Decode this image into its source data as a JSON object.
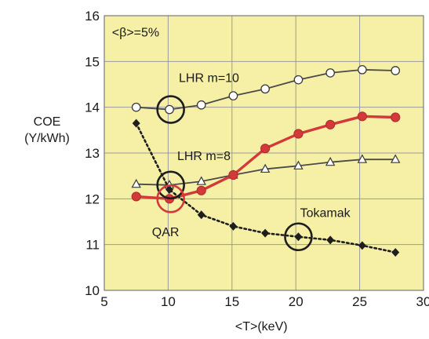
{
  "chart_data": {
    "type": "line",
    "annotation_top": "<β>=5%",
    "xlabel": "<T>(keV)",
    "ylabel_line1": "COE",
    "ylabel_line2": "(Y/kWh)",
    "xlim": [
      5,
      30
    ],
    "ylim": [
      10,
      16
    ],
    "xticks": [
      5,
      10,
      15,
      20,
      25,
      30
    ],
    "xtick_labels": [
      "5",
      "10",
      "15",
      "20",
      "25",
      "30"
    ],
    "yticks": [
      10,
      11,
      12,
      13,
      14,
      15,
      16
    ],
    "ytick_labels": [
      "10",
      "11",
      "12",
      "13",
      "14",
      "15",
      "16"
    ],
    "grid": true,
    "background": "#f6f0a6",
    "series": [
      {
        "name": "LHR m=10",
        "color": "#4a4a4a",
        "marker": "open-circle",
        "line": "solid",
        "x": [
          7.5,
          10.1,
          12.6,
          15.1,
          17.6,
          20.2,
          22.7,
          25.2,
          27.8
        ],
        "y": [
          14.0,
          13.95,
          14.05,
          14.25,
          14.4,
          14.6,
          14.75,
          14.82,
          14.8
        ]
      },
      {
        "name": "LHR m=8",
        "color": "#4a4a4a",
        "marker": "open-triangle",
        "line": "solid",
        "x": [
          7.5,
          10.1,
          12.6,
          15.1,
          17.6,
          20.2,
          22.7,
          25.2,
          27.8
        ],
        "y": [
          12.32,
          12.3,
          12.38,
          12.52,
          12.65,
          12.72,
          12.8,
          12.86,
          12.86
        ]
      },
      {
        "name": "QAR",
        "color": "#d23a3a",
        "marker": "filled-circle",
        "line": "solid",
        "x": [
          7.5,
          10.1,
          12.6,
          15.1,
          17.6,
          20.2,
          22.7,
          25.2,
          27.8
        ],
        "y": [
          12.05,
          12.0,
          12.18,
          12.52,
          13.1,
          13.42,
          13.62,
          13.8,
          13.78
        ]
      },
      {
        "name": "Tokamak",
        "color": "#1e1e1e",
        "marker": "filled-diamond",
        "line": "dotted",
        "x": [
          7.5,
          10.1,
          12.6,
          15.1,
          17.6,
          20.2,
          22.7,
          25.2,
          27.8
        ],
        "y": [
          13.65,
          12.2,
          11.65,
          11.4,
          11.25,
          11.17,
          11.1,
          10.98,
          10.83
        ]
      }
    ],
    "highlights": [
      {
        "x": 10.2,
        "y": 13.95,
        "color": "#1e1e1e"
      },
      {
        "x": 10.2,
        "y": 12.3,
        "color": "#1e1e1e"
      },
      {
        "x": 10.2,
        "y": 12.0,
        "color": "#d23a3a"
      },
      {
        "x": 20.2,
        "y": 11.17,
        "color": "#1e1e1e"
      }
    ],
    "labels": [
      {
        "text": "LHR m=10",
        "x": 13.2,
        "y": 14.55,
        "color": "#1e1e1e"
      },
      {
        "text": "LHR m=8",
        "x": 12.8,
        "y": 12.85,
        "color": "#1e1e1e"
      },
      {
        "text": "QAR",
        "x": 9.8,
        "y": 11.18,
        "color": "#d23a3a"
      },
      {
        "text": "Tokamak",
        "x": 22.3,
        "y": 11.6,
        "color": "#1e1e1e"
      }
    ]
  }
}
